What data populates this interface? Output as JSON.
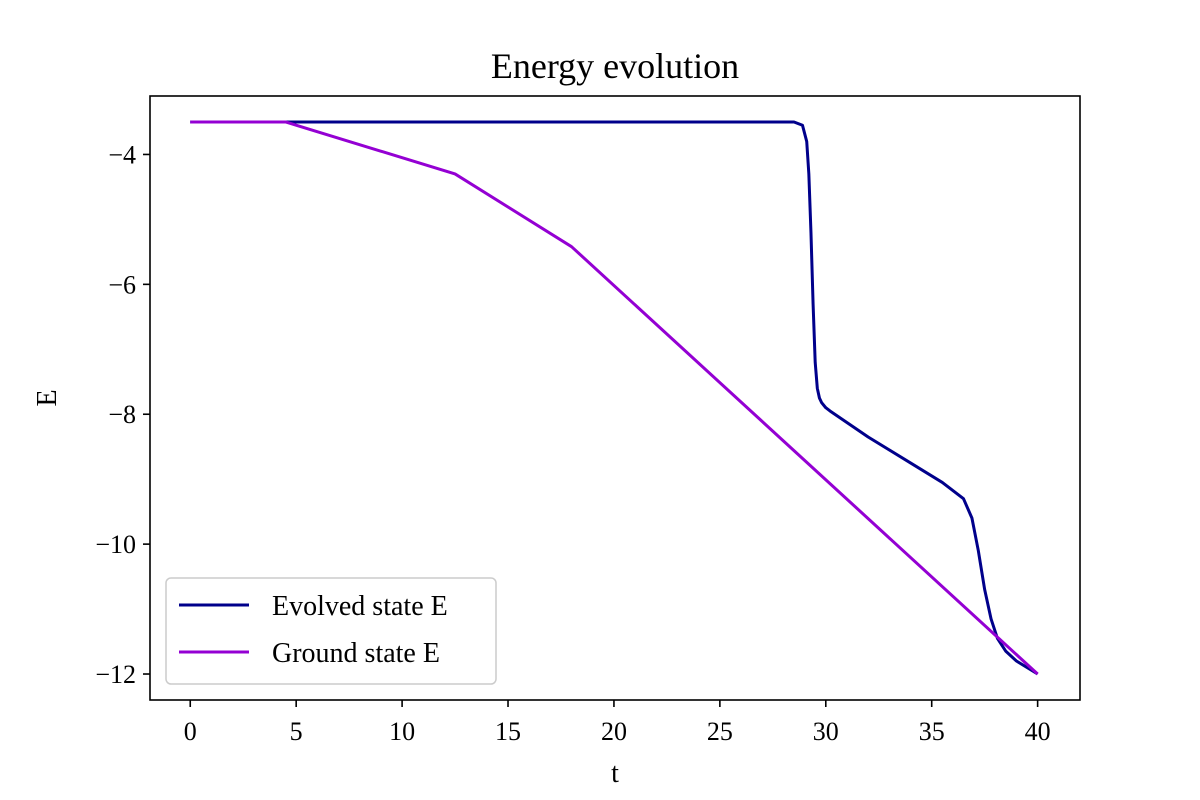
{
  "chart_data": {
    "type": "line",
    "title": "Energy evolution",
    "xlabel": "t",
    "ylabel": "E",
    "xlim": [
      -1.9,
      42.0
    ],
    "ylim": [
      -12.4,
      -3.1
    ],
    "xticks": [
      0,
      5,
      10,
      15,
      20,
      25,
      30,
      35,
      40
    ],
    "yticks": [
      -4,
      -6,
      -8,
      -10,
      -12
    ],
    "xtick_labels": [
      "0",
      "5",
      "10",
      "15",
      "20",
      "25",
      "30",
      "35",
      "40"
    ],
    "ytick_labels": [
      "−4",
      "−6",
      "−8",
      "−10",
      "−12"
    ],
    "grid": false,
    "legend_position": "lower-left",
    "series": [
      {
        "name": "Evolved state E",
        "color": "#00008b",
        "x": [
          0,
          4.5,
          10,
          20,
          28.5,
          28.9,
          29.1,
          29.2,
          29.3,
          29.4,
          29.5,
          29.6,
          29.7,
          29.8,
          30.0,
          30.2,
          32,
          34,
          35.5,
          36.5,
          36.9,
          37.2,
          37.5,
          37.8,
          38.1,
          38.5,
          39.0,
          40.0
        ],
        "y": [
          -3.5,
          -3.5,
          -3.5,
          -3.5,
          -3.5,
          -3.55,
          -3.8,
          -4.3,
          -5.2,
          -6.3,
          -7.2,
          -7.6,
          -7.75,
          -7.82,
          -7.9,
          -7.95,
          -8.35,
          -8.75,
          -9.05,
          -9.3,
          -9.6,
          -10.1,
          -10.7,
          -11.15,
          -11.45,
          -11.65,
          -11.8,
          -12.0
        ]
      },
      {
        "name": "Ground state E",
        "color": "#9400d3",
        "x": [
          0,
          4.5,
          12.5,
          18,
          40
        ],
        "y": [
          -3.5,
          -3.5,
          -4.3,
          -5.42,
          -12.0
        ]
      }
    ]
  }
}
